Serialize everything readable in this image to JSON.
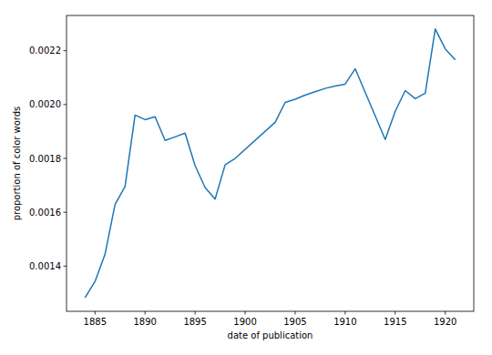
{
  "chart_data": {
    "type": "line",
    "x_label": "date of publication",
    "y_label": "proportion of color words",
    "x": [
      1884,
      1885,
      1886,
      1887,
      1888,
      1889,
      1890,
      1891,
      1892,
      1893,
      1894,
      1895,
      1896,
      1897,
      1898,
      1899,
      1903,
      1904,
      1905,
      1906,
      1907,
      1908,
      1909,
      1910,
      1911,
      1914,
      1915,
      1916,
      1917,
      1918,
      1919,
      1920,
      1921
    ],
    "values": [
      0.001282,
      0.001343,
      0.001444,
      0.001629,
      0.001696,
      0.001961,
      0.001944,
      0.001955,
      0.001867,
      0.00188,
      0.001894,
      0.001773,
      0.001692,
      0.001649,
      0.001776,
      0.0018,
      0.001934,
      0.002008,
      0.00202,
      0.002035,
      0.002048,
      0.00206,
      0.002069,
      0.002076,
      0.002133,
      0.00187,
      0.001975,
      0.002052,
      0.002022,
      0.002042,
      0.002281,
      0.002207,
      0.002166
    ],
    "color": "#1f77b4",
    "xlim": [
      1882.15,
      1922.85
    ],
    "xticks": [
      1885,
      1890,
      1895,
      1900,
      1905,
      1910,
      1915,
      1920
    ],
    "ylim": [
      0.001232,
      0.002331
    ],
    "yticks": [
      {
        "value": 0.0014,
        "label": "0.0014"
      },
      {
        "value": 0.0016,
        "label": "0.0016"
      },
      {
        "value": 0.0018,
        "label": "0.0018"
      },
      {
        "value": 0.002,
        "label": "0.0020"
      },
      {
        "value": 0.0022,
        "label": "0.0022"
      }
    ],
    "grid": false
  }
}
